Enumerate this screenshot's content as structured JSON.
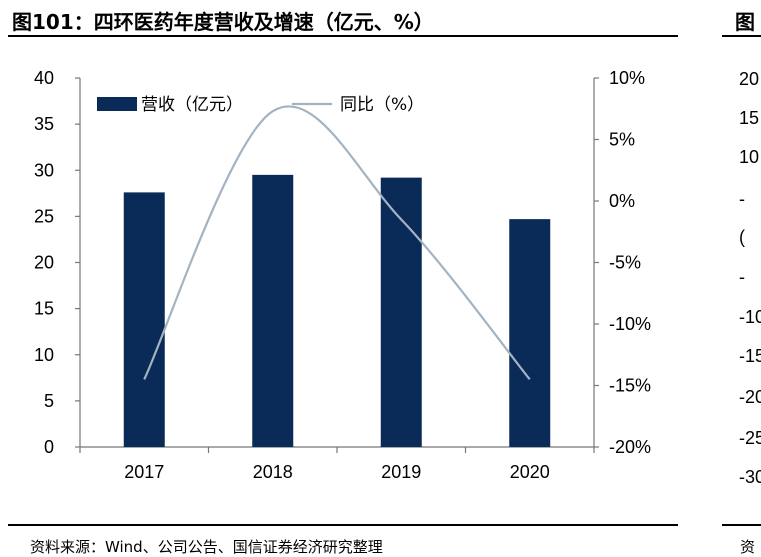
{
  "title": "图101：四环医药年度营收及增速（亿元、%）",
  "title_right_fragment": "图",
  "source": "资料来源：Wind、公司公告、国信证券经济研究整理",
  "source_right_fragment": "资",
  "right_panel_tick_fragments": [
    "20",
    "15",
    "10",
    "-",
    "(",
    "-",
    "-10",
    "-15",
    "-20",
    "-25",
    "-30"
  ],
  "chart_data": {
    "type": "bar+line",
    "categories": [
      "2017",
      "2018",
      "2019",
      "2020"
    ],
    "series": [
      {
        "name": "营收（亿元）",
        "type": "bar",
        "axis": "left",
        "color": "#0a2a57",
        "values": [
          27.6,
          29.5,
          29.2,
          24.7
        ]
      },
      {
        "name": "同比（%）",
        "type": "line",
        "axis": "right",
        "color": "#a3b3c2",
        "values": [
          -14.5,
          7.3,
          -1.5,
          -14.5
        ]
      }
    ],
    "y_left": {
      "min": 0,
      "max": 40,
      "ticks": [
        "0",
        "5",
        "10",
        "15",
        "20",
        "25",
        "30",
        "35",
        "40"
      ]
    },
    "y_right": {
      "min": -20,
      "max": 10,
      "ticks": [
        "-20%",
        "-15%",
        "-10%",
        "-5%",
        "0%",
        "5%",
        "10%"
      ]
    },
    "legend_position": "top",
    "grid": false
  }
}
